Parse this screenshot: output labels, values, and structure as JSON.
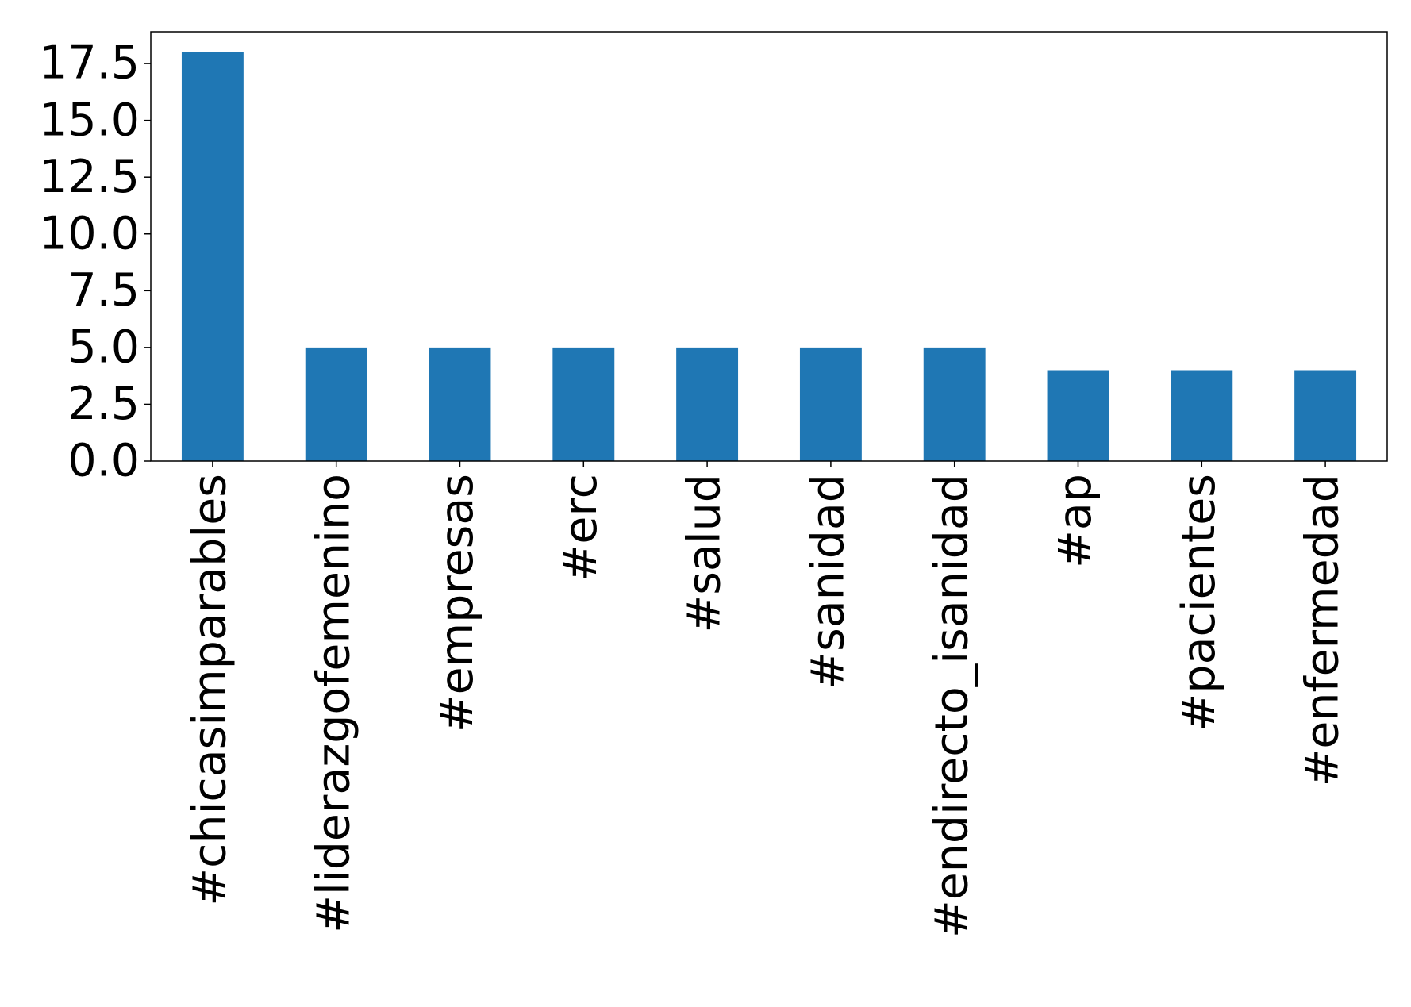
{
  "chart_data": {
    "type": "bar",
    "categories": [
      "#chicasimparables",
      "#liderazgofemenino",
      "#empresas",
      "#erc",
      "#salud",
      "#sanidad",
      "#endirecto_isanidad",
      "#ap",
      "#pacientes",
      "#enfermedad"
    ],
    "values": [
      18,
      5,
      5,
      5,
      5,
      5,
      5,
      4,
      4,
      4
    ],
    "color": "#1f77b4",
    "ylim": [
      0,
      18.9
    ],
    "yticks": [
      {
        "value": 0,
        "label": "0.0"
      },
      2.5,
      {
        "value": 5,
        "label": "5.0"
      },
      7.5,
      {
        "value": 10,
        "label": "10.0"
      },
      12.5,
      {
        "value": 15,
        "label": "15.0"
      },
      17.5
    ],
    "grid": false
  }
}
